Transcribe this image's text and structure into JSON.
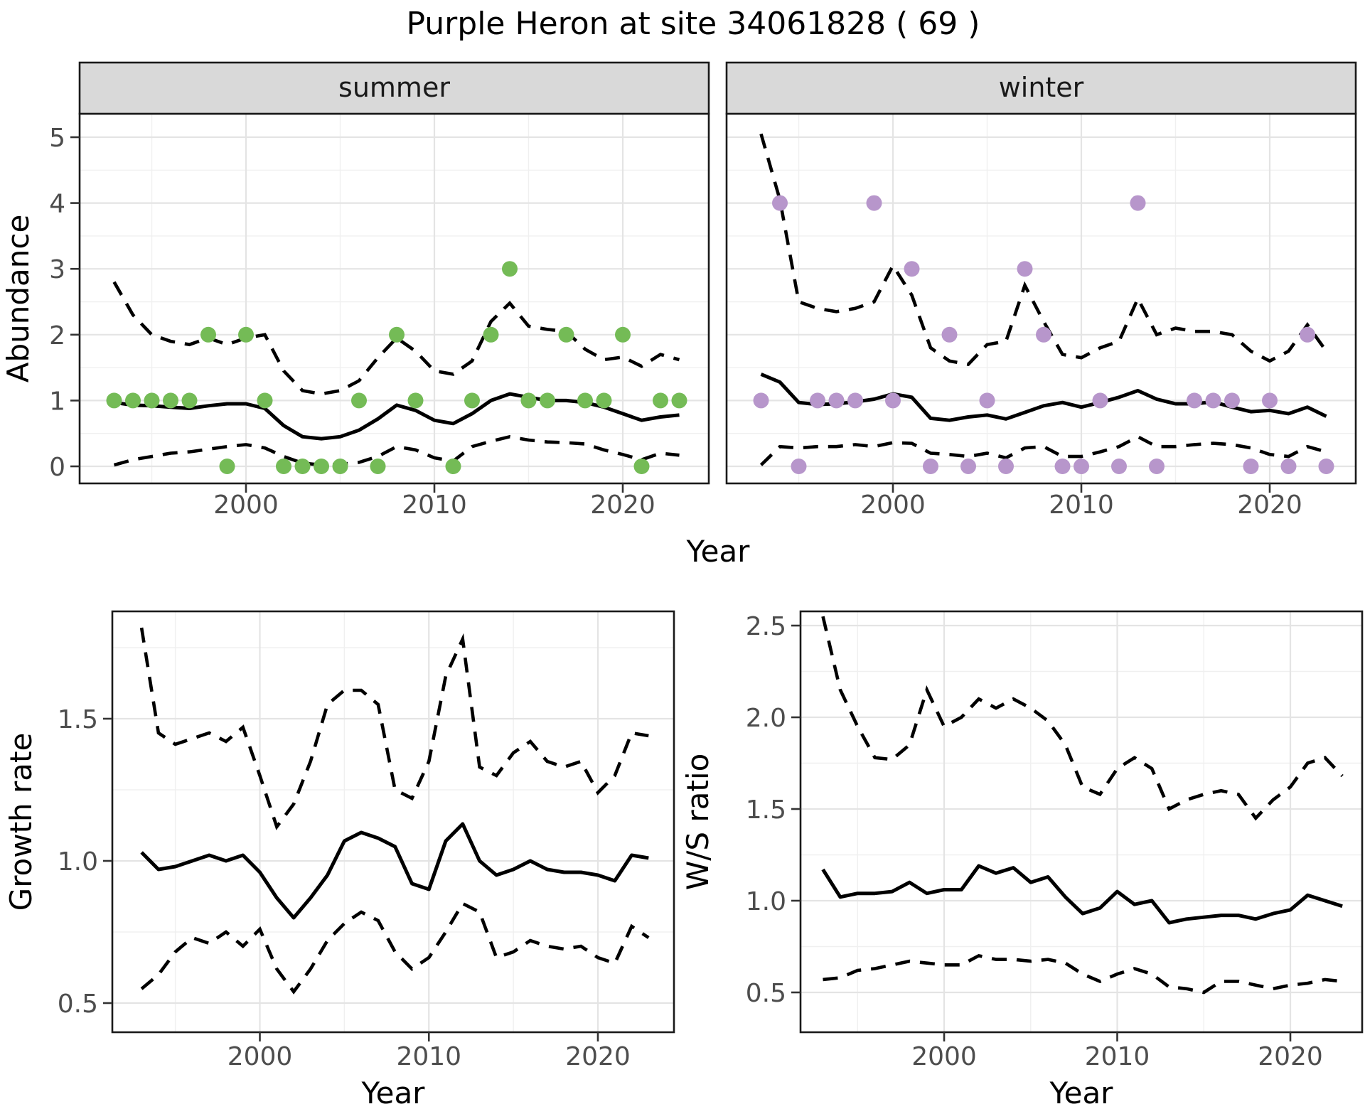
{
  "title": "Purple Heron at site 34061828 ( 69 )",
  "colors": {
    "summer_point": "#74BB56",
    "winter_point": "#B796CB",
    "fit_line": "#000000",
    "ci_line": "#000000",
    "strip_bg": "#D9D9D9",
    "strip_text": "#1A1A1A",
    "panel_border": "#1A1A1A",
    "grid_major": "#E4E4E4",
    "grid_minor": "#F0F0F0",
    "axis_text": "#4D4D4D",
    "axis_title": "#000000",
    "tick_mark": "#333333"
  },
  "years": [
    1993,
    1994,
    1995,
    1996,
    1997,
    1998,
    1999,
    2000,
    2001,
    2002,
    2003,
    2004,
    2005,
    2006,
    2007,
    2008,
    2009,
    2010,
    2011,
    2012,
    2013,
    2014,
    2015,
    2016,
    2017,
    2018,
    2019,
    2020,
    2021,
    2022,
    2023
  ],
  "shared_xlabel": "Year",
  "chart_data": [
    {
      "type": "scatter",
      "panel": "summer",
      "strip_label": "summer",
      "ylabel": "Abundance",
      "xlabel": "Year",
      "x_ticks": [
        "2000",
        "2010",
        "2020"
      ],
      "x_minor": [
        1995,
        2005,
        2015
      ],
      "y_ticks": [
        "0",
        "1",
        "2",
        "3",
        "4",
        "5"
      ],
      "y_tick_values": [
        0,
        1,
        2,
        3,
        4,
        5
      ],
      "y_minor": [
        0.5,
        1.5,
        2.5,
        3.5,
        4.5
      ],
      "ylim": [
        -0.26,
        5.36
      ],
      "xlim": [
        1991.2,
        2024.6
      ],
      "points": [
        1,
        1,
        1,
        1,
        1,
        2,
        0,
        2,
        1,
        0,
        0,
        0,
        0,
        1,
        0,
        2,
        1,
        null,
        0,
        1,
        2,
        3,
        1,
        1,
        2,
        1,
        1,
        2,
        0,
        1,
        1
      ],
      "fit": [
        0.97,
        0.93,
        0.92,
        0.9,
        0.88,
        0.92,
        0.95,
        0.95,
        0.88,
        0.62,
        0.45,
        0.42,
        0.45,
        0.55,
        0.72,
        0.93,
        0.85,
        0.7,
        0.65,
        0.8,
        1.0,
        1.1,
        1.05,
        1.0,
        1.0,
        0.97,
        0.9,
        0.8,
        0.7,
        0.75,
        0.78
      ],
      "ci_upper": [
        2.8,
        2.3,
        2.0,
        1.9,
        1.85,
        1.95,
        1.85,
        1.95,
        2.0,
        1.45,
        1.15,
        1.1,
        1.15,
        1.3,
        1.65,
        1.95,
        1.75,
        1.45,
        1.4,
        1.6,
        2.2,
        2.48,
        2.13,
        2.08,
        2.05,
        1.78,
        1.62,
        1.66,
        1.52,
        1.7,
        1.62
      ],
      "ci_lower": [
        0.02,
        0.1,
        0.15,
        0.2,
        0.22,
        0.26,
        0.3,
        0.33,
        0.28,
        0.15,
        0.05,
        0.02,
        0.03,
        0.06,
        0.15,
        0.3,
        0.25,
        0.13,
        0.08,
        0.3,
        0.38,
        0.45,
        0.4,
        0.37,
        0.36,
        0.34,
        0.25,
        0.18,
        0.1,
        0.2,
        0.17
      ]
    },
    {
      "type": "scatter",
      "panel": "winter",
      "strip_label": "winter",
      "ylabel": "Abundance",
      "xlabel": "Year",
      "x_ticks": [
        "2000",
        "2010",
        "2020"
      ],
      "x_minor": [
        1995,
        2005,
        2015
      ],
      "y_ticks": [
        "0",
        "1",
        "2",
        "3",
        "4",
        "5"
      ],
      "y_tick_values": [
        0,
        1,
        2,
        3,
        4,
        5
      ],
      "y_minor": [
        0.5,
        1.5,
        2.5,
        3.5,
        4.5
      ],
      "ylim": [
        -0.26,
        5.36
      ],
      "xlim": [
        1991.2,
        2024.6
      ],
      "points": [
        1,
        4,
        0,
        1,
        1,
        1,
        4,
        1,
        3,
        0,
        2,
        0,
        1,
        0,
        3,
        2,
        0,
        0,
        1,
        0,
        4,
        0,
        null,
        1,
        1,
        1,
        0,
        1,
        0,
        2,
        0
      ],
      "fit": [
        1.4,
        1.28,
        0.97,
        0.94,
        0.95,
        0.98,
        1.02,
        1.1,
        1.05,
        0.73,
        0.7,
        0.75,
        0.78,
        0.72,
        0.82,
        0.92,
        0.97,
        0.9,
        0.97,
        1.05,
        1.15,
        1.02,
        0.95,
        0.95,
        0.98,
        0.9,
        0.83,
        0.85,
        0.8,
        0.9,
        0.76
      ],
      "ci_upper": [
        5.05,
        4.05,
        2.5,
        2.4,
        2.35,
        2.4,
        2.5,
        3.05,
        2.6,
        1.8,
        1.6,
        1.55,
        1.85,
        1.9,
        2.75,
        2.2,
        1.7,
        1.65,
        1.8,
        1.9,
        2.55,
        2.0,
        2.1,
        2.05,
        2.05,
        2.0,
        1.75,
        1.6,
        1.75,
        2.15,
        1.75
      ],
      "ci_lower": [
        0.02,
        0.3,
        0.28,
        0.3,
        0.3,
        0.33,
        0.3,
        0.36,
        0.35,
        0.2,
        0.18,
        0.15,
        0.2,
        0.13,
        0.28,
        0.3,
        0.15,
        0.15,
        0.22,
        0.3,
        0.45,
        0.3,
        0.3,
        0.33,
        0.35,
        0.33,
        0.28,
        0.18,
        0.15,
        0.3,
        0.22
      ]
    },
    {
      "type": "line",
      "panel": "growth",
      "ylabel": "Growth rate",
      "xlabel": "Year",
      "x_ticks": [
        "2000",
        "2010",
        "2020"
      ],
      "x_minor": [
        1995,
        2005,
        2015
      ],
      "y_ticks": [
        "0.5",
        "1.0",
        "1.5"
      ],
      "y_tick_values": [
        0.5,
        1.0,
        1.5
      ],
      "y_minor": [
        0.75,
        1.25,
        1.75
      ],
      "ylim": [
        0.4,
        1.88
      ],
      "xlim": [
        1991.3,
        2024.5
      ],
      "fit": [
        1.03,
        0.97,
        0.98,
        1.0,
        1.02,
        1.0,
        1.02,
        0.96,
        0.87,
        0.8,
        0.87,
        0.95,
        1.07,
        1.1,
        1.08,
        1.05,
        0.92,
        0.9,
        1.07,
        1.13,
        1.0,
        0.95,
        0.97,
        1.0,
        0.97,
        0.96,
        0.96,
        0.95,
        0.93,
        1.02,
        1.01
      ],
      "ci_upper": [
        1.82,
        1.45,
        1.41,
        1.43,
        1.45,
        1.42,
        1.47,
        1.3,
        1.12,
        1.2,
        1.35,
        1.55,
        1.6,
        1.6,
        1.55,
        1.25,
        1.22,
        1.35,
        1.65,
        1.78,
        1.33,
        1.3,
        1.38,
        1.42,
        1.35,
        1.33,
        1.35,
        1.24,
        1.3,
        1.45,
        1.44
      ],
      "ci_lower": [
        0.55,
        0.6,
        0.68,
        0.73,
        0.71,
        0.75,
        0.7,
        0.76,
        0.62,
        0.54,
        0.62,
        0.72,
        0.78,
        0.82,
        0.79,
        0.68,
        0.62,
        0.66,
        0.75,
        0.85,
        0.82,
        0.66,
        0.68,
        0.72,
        0.7,
        0.69,
        0.7,
        0.66,
        0.64,
        0.77,
        0.73
      ]
    },
    {
      "type": "line",
      "panel": "ws",
      "ylabel": "W/S ratio",
      "xlabel": "Year",
      "x_ticks": [
        "2000",
        "2010",
        "2020"
      ],
      "x_minor": [
        1995,
        2005,
        2015
      ],
      "y_ticks": [
        "0.5",
        "1.0",
        "1.5",
        "2.0",
        "2.5"
      ],
      "y_tick_values": [
        0.5,
        1.0,
        1.5,
        2.0,
        2.5
      ],
      "y_minor": [
        0.75,
        1.25,
        1.75,
        2.25
      ],
      "ylim": [
        0.28,
        2.58
      ],
      "xlim": [
        1991.7,
        2024.2
      ],
      "fit": [
        1.17,
        1.02,
        1.04,
        1.04,
        1.05,
        1.1,
        1.04,
        1.06,
        1.06,
        1.19,
        1.15,
        1.18,
        1.1,
        1.13,
        1.02,
        0.93,
        0.96,
        1.05,
        0.98,
        1.0,
        0.88,
        0.9,
        0.91,
        0.92,
        0.92,
        0.9,
        0.93,
        0.95,
        1.03,
        1.0,
        0.97
      ],
      "ci_upper": [
        2.55,
        2.15,
        1.95,
        1.78,
        1.77,
        1.85,
        2.15,
        1.95,
        2.0,
        2.1,
        2.05,
        2.1,
        2.05,
        1.98,
        1.85,
        1.62,
        1.58,
        1.72,
        1.78,
        1.72,
        1.5,
        1.55,
        1.58,
        1.6,
        1.58,
        1.45,
        1.55,
        1.62,
        1.75,
        1.78,
        1.68
      ],
      "ci_lower": [
        0.57,
        0.58,
        0.62,
        0.63,
        0.65,
        0.67,
        0.66,
        0.65,
        0.65,
        0.7,
        0.68,
        0.68,
        0.67,
        0.68,
        0.66,
        0.6,
        0.56,
        0.6,
        0.63,
        0.6,
        0.53,
        0.52,
        0.5,
        0.56,
        0.56,
        0.54,
        0.52,
        0.54,
        0.55,
        0.57,
        0.56
      ]
    }
  ]
}
